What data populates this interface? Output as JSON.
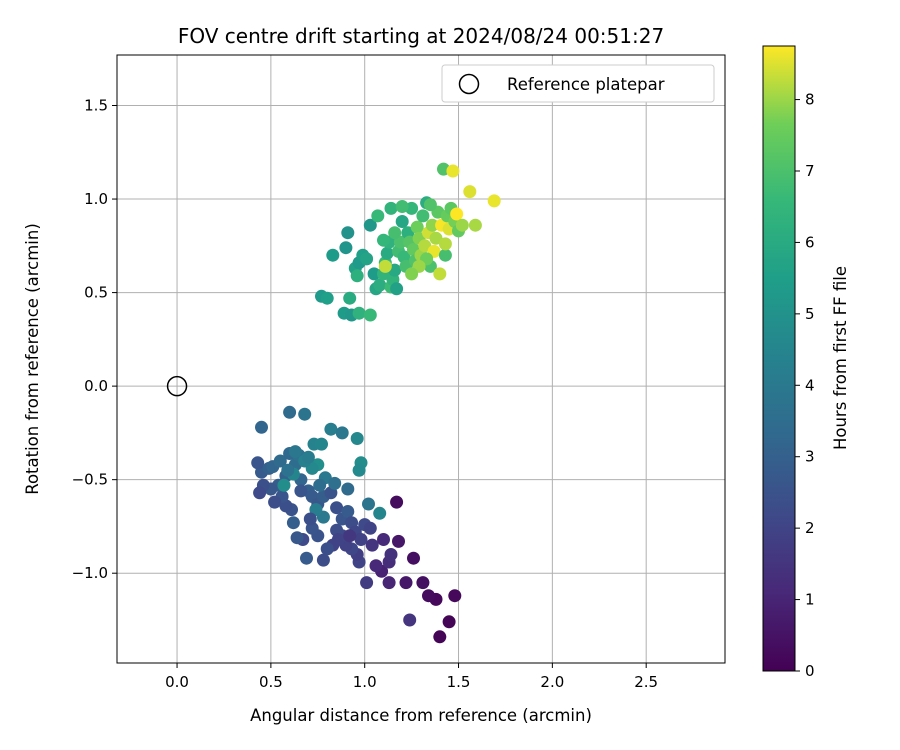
{
  "chart_data": {
    "type": "scatter",
    "title": "FOV centre drift starting at 2024/08/24 00:51:27",
    "xlabel": "Angular distance from reference (arcmin)",
    "ylabel": "Rotation from reference (arcmin)",
    "xlim": [
      -0.32,
      2.92
    ],
    "ylim": [
      -1.48,
      1.77
    ],
    "xticks": [
      0.0,
      0.5,
      1.0,
      1.5,
      2.0,
      2.5
    ],
    "xtick_labels": [
      "0.0",
      "0.5",
      "1.0",
      "1.5",
      "2.0",
      "2.5"
    ],
    "yticks": [
      -1.0,
      -0.5,
      0.0,
      0.5,
      1.0,
      1.5
    ],
    "ytick_labels": [
      "−1.0",
      "−0.5",
      "0.0",
      "0.5",
      "1.0",
      "1.5"
    ],
    "grid": true,
    "legend": {
      "position": "top-right",
      "entries": [
        "Reference platepar"
      ]
    },
    "reference_point": {
      "x": 0.0,
      "y": 0.0
    },
    "colorbar": {
      "label": "Hours from first FF file",
      "min": 0,
      "max": 8.75,
      "ticks": [
        0,
        1,
        2,
        3,
        4,
        5,
        6,
        7,
        8
      ],
      "tick_labels": [
        "0",
        "1",
        "2",
        "3",
        "4",
        "5",
        "6",
        "7",
        "8"
      ],
      "colormap": "viridis"
    },
    "points": [
      [
        1.4,
        -1.34,
        0.1
      ],
      [
        1.45,
        -1.26,
        0.1
      ],
      [
        1.24,
        -1.25,
        1.5
      ],
      [
        1.38,
        -1.14,
        0.2
      ],
      [
        1.34,
        -1.12,
        0.3
      ],
      [
        1.48,
        -1.12,
        0.2
      ],
      [
        1.31,
        -1.05,
        0.4
      ],
      [
        1.22,
        -1.05,
        0.6
      ],
      [
        1.13,
        -1.05,
        1.0
      ],
      [
        1.09,
        -0.99,
        0.9
      ],
      [
        1.06,
        -0.96,
        1.1
      ],
      [
        1.13,
        -0.94,
        1.3
      ],
      [
        1.26,
        -0.92,
        0.4
      ],
      [
        1.14,
        -0.9,
        1.4
      ],
      [
        1.18,
        -0.83,
        0.6
      ],
      [
        1.17,
        -0.62,
        0.3
      ],
      [
        1.1,
        -0.82,
        1.2
      ],
      [
        1.04,
        -0.85,
        1.5
      ],
      [
        1.01,
        -1.05,
        1.7
      ],
      [
        0.97,
        -0.94,
        2.0
      ],
      [
        0.96,
        -0.9,
        1.8
      ],
      [
        0.93,
        -0.87,
        2.1
      ],
      [
        0.9,
        -0.85,
        1.9
      ],
      [
        0.88,
        -0.8,
        2.2
      ],
      [
        0.85,
        -0.77,
        2.3
      ],
      [
        0.83,
        -0.85,
        2.0
      ],
      [
        0.8,
        -0.87,
        2.4
      ],
      [
        0.78,
        -0.93,
        2.3
      ],
      [
        0.75,
        -0.8,
        2.5
      ],
      [
        0.72,
        -0.76,
        2.6
      ],
      [
        0.69,
        -0.92,
        2.8
      ],
      [
        0.67,
        -0.82,
        2.2
      ],
      [
        0.64,
        -0.81,
        2.7
      ],
      [
        0.62,
        -0.73,
        2.9
      ],
      [
        0.61,
        -0.66,
        2.5
      ],
      [
        0.58,
        -0.64,
        2.4
      ],
      [
        0.56,
        -0.59,
        2.6
      ],
      [
        0.54,
        -0.53,
        2.9
      ],
      [
        0.52,
        -0.62,
        2.3
      ],
      [
        0.5,
        -0.55,
        2.7
      ],
      [
        0.46,
        -0.53,
        2.4
      ],
      [
        0.44,
        -0.57,
        2.2
      ],
      [
        0.45,
        -0.46,
        2.8
      ],
      [
        0.43,
        -0.41,
        2.6
      ],
      [
        0.49,
        -0.44,
        3.0
      ],
      [
        0.51,
        -0.43,
        3.2
      ],
      [
        0.55,
        -0.4,
        3.4
      ],
      [
        0.58,
        -0.48,
        3.1
      ],
      [
        0.6,
        -0.36,
        3.3
      ],
      [
        0.63,
        -0.42,
        3.5
      ],
      [
        0.65,
        -0.37,
        3.6
      ],
      [
        0.66,
        -0.5,
        3.2
      ],
      [
        0.7,
        -0.56,
        3.0
      ],
      [
        0.72,
        -0.59,
        2.8
      ],
      [
        0.75,
        -0.63,
        2.7
      ],
      [
        0.78,
        -0.59,
        2.9
      ],
      [
        0.82,
        -0.57,
        2.5
      ],
      [
        0.85,
        -0.65,
        2.4
      ],
      [
        0.88,
        -0.71,
        2.6
      ],
      [
        0.91,
        -0.67,
        2.8
      ],
      [
        0.93,
        -0.73,
        2.3
      ],
      [
        0.95,
        -0.78,
        2.1
      ],
      [
        0.98,
        -0.82,
        1.9
      ],
      [
        1.0,
        -0.74,
        2.2
      ],
      [
        1.03,
        -0.76,
        2.0
      ],
      [
        0.45,
        -0.22,
        3.2
      ],
      [
        0.6,
        -0.14,
        3.4
      ],
      [
        0.68,
        -0.15,
        3.8
      ],
      [
        0.73,
        -0.31,
        4.4
      ],
      [
        0.77,
        -0.31,
        4.5
      ],
      [
        0.82,
        -0.23,
        4.2
      ],
      [
        0.88,
        -0.25,
        3.9
      ],
      [
        0.96,
        -0.28,
        4.6
      ],
      [
        0.98,
        -0.41,
        4.8
      ],
      [
        0.97,
        -0.45,
        4.7
      ],
      [
        0.75,
        -0.42,
        4.9
      ],
      [
        0.72,
        -0.44,
        4.6
      ],
      [
        0.68,
        -0.4,
        4.3
      ],
      [
        0.62,
        -0.47,
        4.5
      ],
      [
        0.57,
        -0.53,
        4.8
      ],
      [
        0.59,
        -0.45,
        3.7
      ],
      [
        0.63,
        -0.35,
        3.9
      ],
      [
        0.7,
        -0.38,
        4.1
      ],
      [
        0.79,
        -0.49,
        4.0
      ],
      [
        0.84,
        -0.52,
        3.6
      ],
      [
        0.91,
        -0.55,
        3.4
      ],
      [
        0.78,
        -0.7,
        4.0
      ],
      [
        0.74,
        -0.66,
        4.2
      ],
      [
        1.08,
        -0.68,
        4.5
      ],
      [
        1.02,
        -0.63,
        3.8
      ],
      [
        0.76,
        -0.53,
        3.5
      ],
      [
        0.66,
        -0.56,
        2.6
      ],
      [
        0.71,
        -0.71,
        2.4
      ],
      [
        0.86,
        -0.82,
        2.0
      ],
      [
        0.92,
        -0.8,
        1.6
      ],
      [
        0.89,
        0.39,
        5.4
      ],
      [
        0.93,
        0.38,
        5.2
      ],
      [
        0.97,
        0.39,
        6.3
      ],
      [
        1.03,
        0.38,
        6.6
      ],
      [
        0.92,
        0.47,
        6.0
      ],
      [
        0.77,
        0.48,
        5.3
      ],
      [
        0.8,
        0.47,
        5.5
      ],
      [
        0.83,
        0.7,
        5.4
      ],
      [
        0.9,
        0.74,
        5.1
      ],
      [
        0.91,
        0.82,
        5.0
      ],
      [
        0.95,
        0.63,
        5.6
      ],
      [
        0.96,
        0.59,
        6.2
      ],
      [
        0.97,
        0.66,
        5.3
      ],
      [
        0.99,
        0.7,
        5.5
      ],
      [
        1.01,
        0.68,
        5.7
      ],
      [
        1.03,
        0.86,
        5.2
      ],
      [
        1.05,
        0.6,
        5.4
      ],
      [
        1.06,
        0.52,
        5.8
      ],
      [
        1.08,
        0.54,
        6.1
      ],
      [
        1.1,
        0.6,
        6.4
      ],
      [
        1.11,
        0.66,
        6.6
      ],
      [
        1.12,
        0.71,
        6.0
      ],
      [
        1.13,
        0.77,
        6.3
      ],
      [
        1.14,
        0.53,
        6.7
      ],
      [
        1.15,
        0.57,
        6.4
      ],
      [
        1.16,
        0.62,
        5.9
      ],
      [
        1.17,
        0.52,
        5.6
      ],
      [
        1.18,
        0.72,
        6.8
      ],
      [
        1.19,
        0.77,
        7.0
      ],
      [
        1.2,
        0.88,
        5.8
      ],
      [
        1.21,
        0.69,
        6.6
      ],
      [
        1.22,
        0.64,
        6.9
      ],
      [
        1.23,
        0.82,
        6.2
      ],
      [
        1.24,
        0.77,
        7.2
      ],
      [
        1.25,
        0.95,
        6.5
      ],
      [
        1.26,
        0.73,
        7.4
      ],
      [
        1.27,
        0.67,
        7.1
      ],
      [
        1.28,
        0.85,
        7.6
      ],
      [
        1.29,
        0.79,
        7.8
      ],
      [
        1.3,
        0.7,
        8.0
      ],
      [
        1.31,
        0.91,
        6.8
      ],
      [
        1.32,
        0.75,
        8.2
      ],
      [
        1.33,
        0.98,
        6.1
      ],
      [
        1.34,
        0.82,
        8.4
      ],
      [
        1.35,
        0.64,
        7.0
      ],
      [
        1.36,
        0.86,
        7.9
      ],
      [
        1.37,
        0.72,
        8.6
      ],
      [
        1.38,
        0.79,
        8.1
      ],
      [
        1.39,
        0.93,
        7.3
      ],
      [
        1.4,
        0.6,
        8.3
      ],
      [
        1.41,
        0.86,
        8.7
      ],
      [
        1.42,
        1.16,
        7.1
      ],
      [
        1.43,
        0.7,
        6.9
      ],
      [
        1.44,
        0.91,
        7.5
      ],
      [
        1.45,
        0.84,
        8.5
      ],
      [
        1.46,
        0.95,
        7.3
      ],
      [
        1.47,
        1.15,
        8.6
      ],
      [
        1.48,
        0.88,
        7.7
      ],
      [
        1.49,
        0.92,
        8.8
      ],
      [
        1.5,
        0.83,
        7.4
      ],
      [
        1.52,
        0.86,
        8.0
      ],
      [
        1.56,
        1.04,
        8.5
      ],
      [
        1.59,
        0.86,
        8.1
      ],
      [
        1.69,
        0.99,
        8.6
      ],
      [
        1.35,
        0.97,
        7.1
      ],
      [
        1.1,
        0.78,
        6.5
      ],
      [
        1.16,
        0.82,
        6.9
      ],
      [
        1.07,
        0.91,
        6.6
      ],
      [
        1.14,
        0.95,
        6.4
      ],
      [
        1.2,
        0.96,
        6.8
      ],
      [
        1.43,
        0.76,
        8.2
      ],
      [
        1.33,
        0.68,
        7.6
      ],
      [
        1.29,
        0.64,
        8.0
      ],
      [
        1.25,
        0.6,
        7.8
      ],
      [
        1.11,
        0.64,
        8.3
      ]
    ]
  }
}
